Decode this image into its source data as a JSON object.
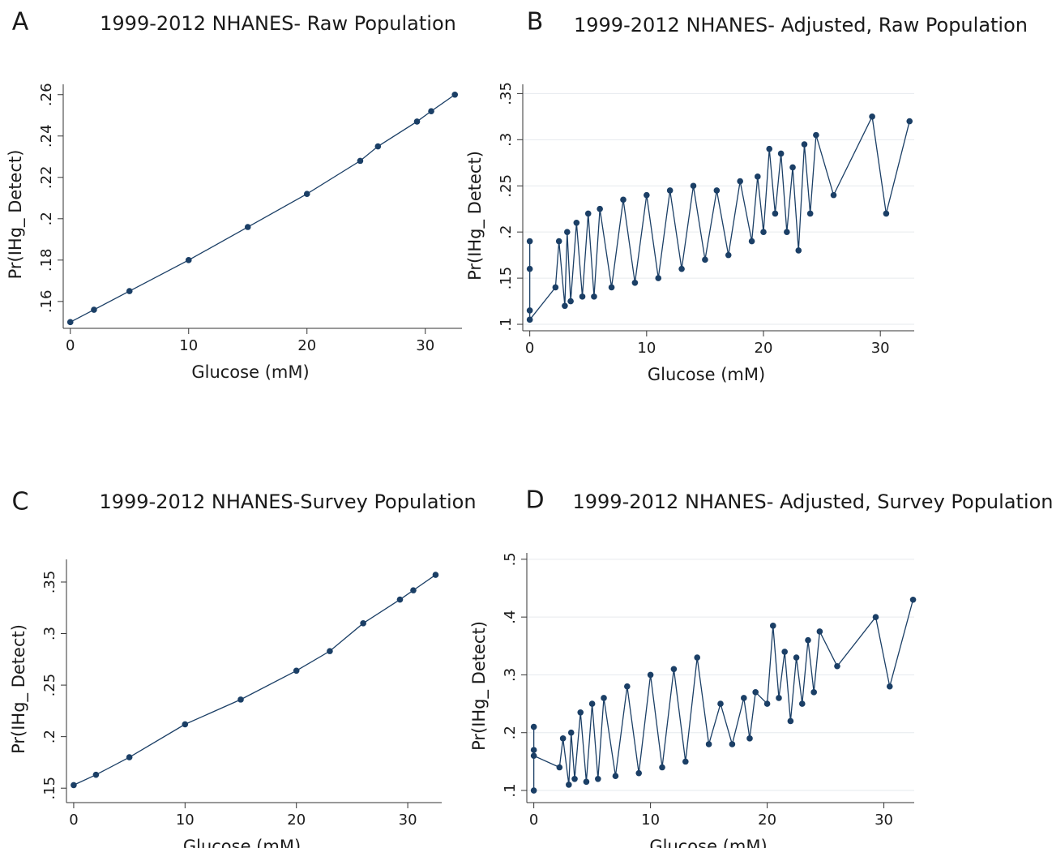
{
  "chart_data": [
    {
      "type": "line",
      "panel_label": "A",
      "title": "1999-2012 NHANES- Raw Population",
      "x_label": "Glucose (mM)",
      "y_label": "Pr(IHg_ Detect)",
      "color": "#1b3f66",
      "grid": false,
      "x": [
        0,
        2,
        5,
        10,
        15,
        20,
        24.5,
        26,
        29.3,
        30.5,
        32.5
      ],
      "values": [
        0.15,
        0.156,
        0.165,
        0.18,
        0.196,
        0.212,
        0.228,
        0.235,
        0.247,
        0.252,
        0.26
      ],
      "xlim": [
        -0.6,
        33.1
      ],
      "ylim": [
        0.147,
        0.265
      ],
      "xticks": [
        0,
        10,
        20,
        30
      ],
      "yticks": [
        {
          "value": 0.16,
          "label": ".16"
        },
        {
          "value": 0.18,
          "label": ".18"
        },
        {
          "value": 0.2,
          "label": ".2"
        },
        {
          "value": 0.22,
          "label": ".22"
        },
        {
          "value": 0.24,
          "label": ".24"
        },
        {
          "value": 0.26,
          "label": ".26"
        }
      ]
    },
    {
      "type": "line",
      "panel_label": "B",
      "title": "1999-2012 NHANES- Adjusted, Raw Population",
      "x_label": "Glucose (mM)",
      "y_label": "Pr(IHg_ Detect)",
      "color": "#1b3f66",
      "grid": true,
      "x": [
        0,
        0,
        0,
        0,
        2.2,
        2.5,
        3,
        3.2,
        3.5,
        4,
        4.5,
        5,
        5.5,
        6,
        7,
        8,
        9,
        10,
        11,
        12,
        13,
        14,
        15,
        16,
        17,
        18,
        19,
        19.5,
        20,
        20.5,
        21,
        21.5,
        22,
        22.5,
        23,
        23.5,
        24,
        24.5,
        26,
        29.3,
        30.5,
        32.5
      ],
      "values": [
        0.16,
        0.115,
        0.19,
        0.105,
        0.14,
        0.19,
        0.12,
        0.2,
        0.125,
        0.21,
        0.13,
        0.22,
        0.13,
        0.225,
        0.14,
        0.235,
        0.145,
        0.24,
        0.15,
        0.245,
        0.16,
        0.25,
        0.17,
        0.245,
        0.175,
        0.255,
        0.19,
        0.26,
        0.2,
        0.29,
        0.22,
        0.285,
        0.2,
        0.27,
        0.18,
        0.295,
        0.22,
        0.305,
        0.24,
        0.325,
        0.22,
        0.32
      ],
      "xlim": [
        -0.6,
        32.9
      ],
      "ylim": [
        0.093,
        0.36
      ],
      "xticks": [
        0,
        10,
        20,
        30
      ],
      "yticks": [
        {
          "value": 0.1,
          "label": ".1"
        },
        {
          "value": 0.15,
          "label": ".15"
        },
        {
          "value": 0.2,
          "label": ".2"
        },
        {
          "value": 0.25,
          "label": ".25"
        },
        {
          "value": 0.3,
          "label": ".3"
        },
        {
          "value": 0.35,
          "label": ".35"
        }
      ]
    },
    {
      "type": "line",
      "panel_label": "C",
      "title": "1999-2012 NHANES-Survey Population",
      "x_label": "Glucose (mM)",
      "y_label": "Pr(IHg_ Detect)",
      "color": "#1b3f66",
      "grid": false,
      "x": [
        0,
        2,
        5,
        10,
        15,
        20,
        23,
        26,
        29.3,
        30.5,
        32.5
      ],
      "values": [
        0.153,
        0.163,
        0.18,
        0.212,
        0.236,
        0.264,
        0.283,
        0.31,
        0.333,
        0.342,
        0.357
      ],
      "xlim": [
        -0.65,
        33.05
      ],
      "ylim": [
        0.136,
        0.372
      ],
      "xticks": [
        0,
        10,
        20,
        30
      ],
      "yticks": [
        {
          "value": 0.15,
          "label": ".15"
        },
        {
          "value": 0.2,
          "label": ".2"
        },
        {
          "value": 0.25,
          "label": ".25"
        },
        {
          "value": 0.3,
          "label": ".3"
        },
        {
          "value": 0.35,
          "label": ".35"
        }
      ]
    },
    {
      "type": "line",
      "panel_label": "D",
      "title": "1999-2012 NHANES- Adjusted, Survey Population",
      "x_label": "Glucose (mM)",
      "y_label": "Pr(IHg_ Detect)",
      "color": "#1b3f66",
      "grid": true,
      "x": [
        0,
        0,
        0,
        0,
        2.2,
        2.5,
        3,
        3.2,
        3.5,
        4,
        4.5,
        5,
        5.5,
        6,
        7,
        8,
        9,
        10,
        11,
        12,
        13,
        14,
        15,
        16,
        17,
        18,
        18.5,
        19,
        20,
        20.5,
        21,
        21.5,
        22,
        22.5,
        23,
        23.5,
        24,
        24.5,
        26,
        29.3,
        30.5,
        32.5
      ],
      "values": [
        0.17,
        0.1,
        0.21,
        0.16,
        0.14,
        0.19,
        0.11,
        0.2,
        0.12,
        0.235,
        0.115,
        0.25,
        0.12,
        0.26,
        0.125,
        0.28,
        0.13,
        0.3,
        0.14,
        0.31,
        0.15,
        0.33,
        0.18,
        0.25,
        0.18,
        0.26,
        0.19,
        0.27,
        0.25,
        0.385,
        0.26,
        0.34,
        0.22,
        0.33,
        0.25,
        0.36,
        0.27,
        0.375,
        0.315,
        0.4,
        0.28,
        0.43
      ],
      "xlim": [
        -0.6,
        32.6
      ],
      "ylim": [
        0.079,
        0.511
      ],
      "xticks": [
        0,
        10,
        20,
        30
      ],
      "yticks": [
        {
          "value": 0.1,
          "label": ".1"
        },
        {
          "value": 0.2,
          "label": ".2"
        },
        {
          "value": 0.3,
          "label": ".3"
        },
        {
          "value": 0.4,
          "label": ".4"
        },
        {
          "value": 0.5,
          "label": ".5"
        }
      ]
    }
  ]
}
